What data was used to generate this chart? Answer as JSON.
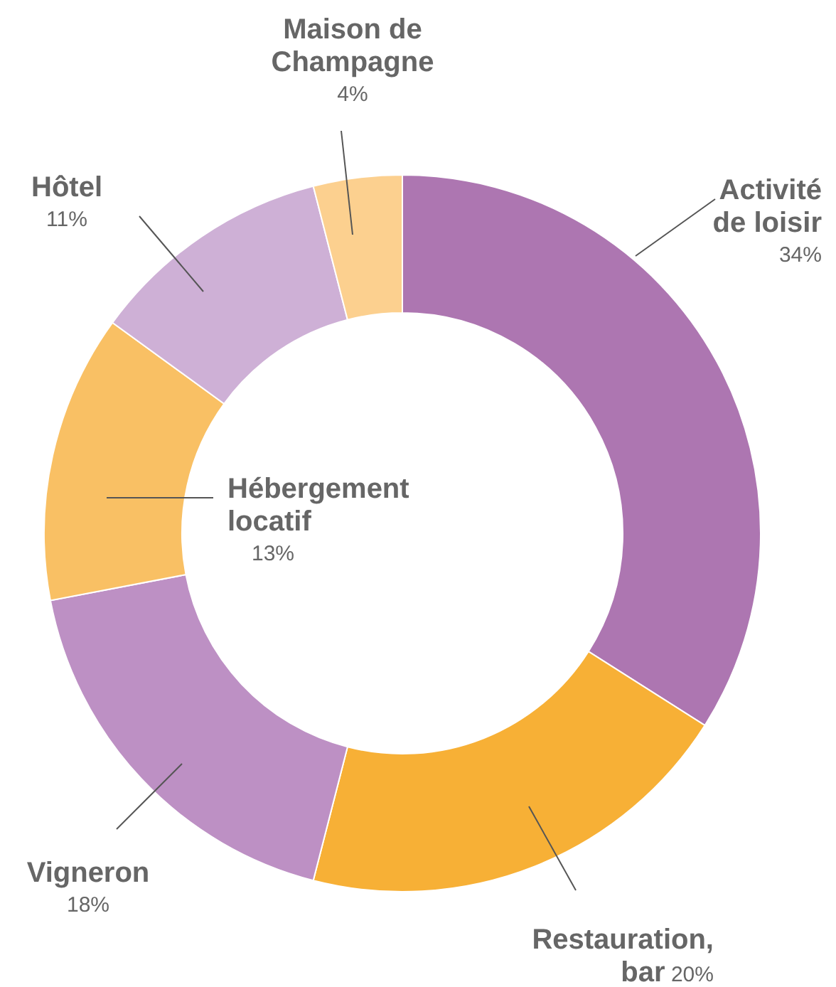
{
  "chart_data": {
    "type": "donut",
    "categories": [
      "Activité de loisir",
      "Restauration, bar",
      "Vigneron",
      "Hébergement locatif",
      "Hôtel",
      "Maison de Champagne"
    ],
    "values": [
      34,
      20,
      18,
      13,
      11,
      4
    ],
    "colors": [
      "#ad76b1",
      "#f7b036",
      "#bd90c4",
      "#f9c064",
      "#ceb0d6",
      "#fcd08f"
    ],
    "value_labels": [
      "34%",
      "20%",
      "18%",
      "13%",
      "11%",
      "4%"
    ]
  }
}
